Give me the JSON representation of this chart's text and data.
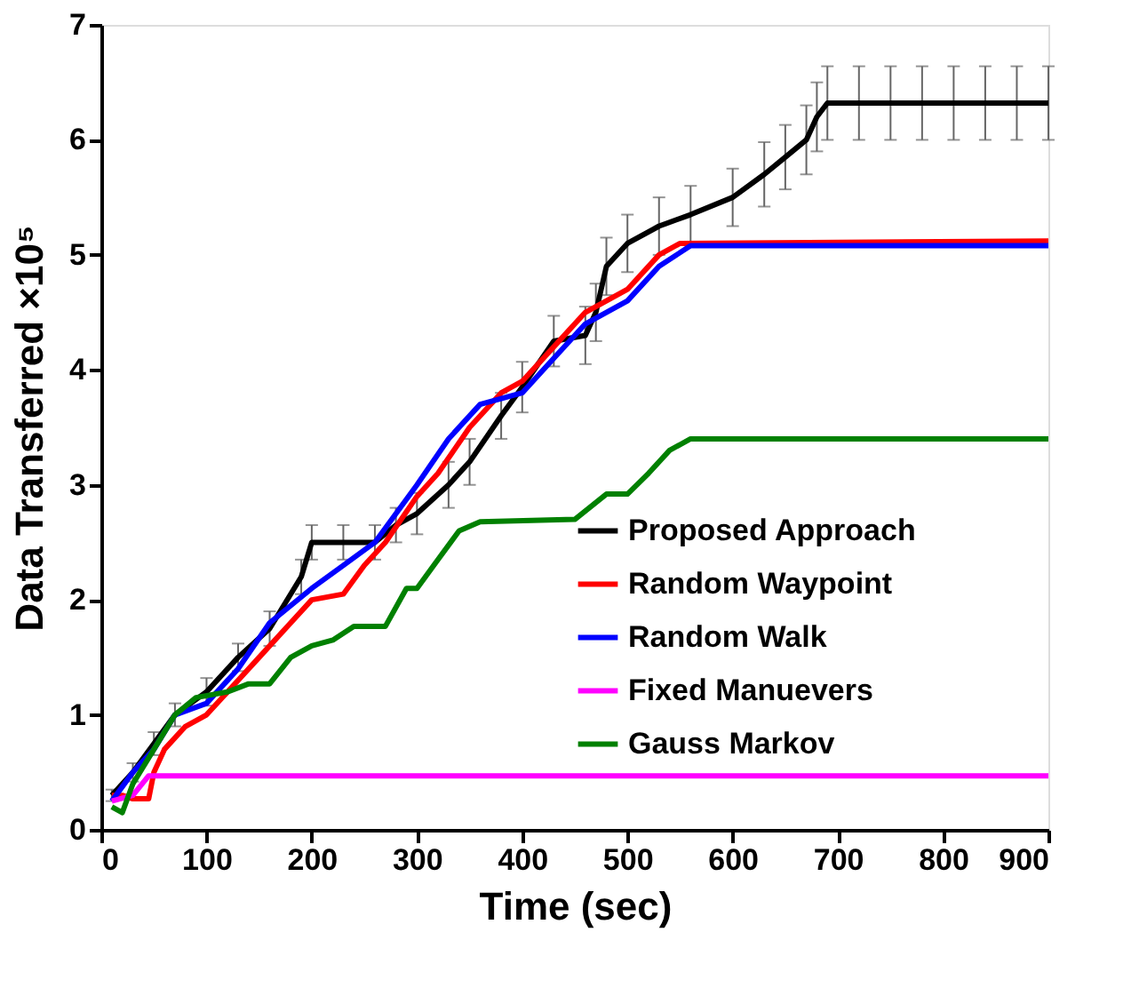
{
  "chart_data": {
    "type": "line",
    "xlabel": "Time (sec)",
    "ylabel": "Data Transferred ×10⁵",
    "xlim": [
      0,
      900
    ],
    "xticks": [
      0,
      100,
      200,
      300,
      400,
      500,
      600,
      700,
      800,
      900
    ],
    "ylim": [
      0,
      7
    ],
    "yticks": [
      0,
      1,
      2,
      3,
      4,
      5,
      6,
      7
    ],
    "grid": false,
    "legend": "bottom right",
    "marker": "none",
    "line_style": "solid",
    "series": [
      {
        "name": "Proposed Approach",
        "color": "#000000",
        "x": [
          10,
          30,
          50,
          70,
          100,
          130,
          160,
          190,
          200,
          230,
          260,
          280,
          300,
          330,
          350,
          380,
          400,
          430,
          460,
          470,
          480,
          500,
          530,
          560,
          600,
          630,
          650,
          670,
          680,
          690,
          720,
          750,
          780,
          810,
          840,
          870,
          900
        ],
        "values": [
          0.3,
          0.5,
          0.75,
          1.0,
          1.2,
          1.5,
          1.75,
          2.2,
          2.5,
          2.5,
          2.5,
          2.65,
          2.75,
          3.0,
          3.2,
          3.6,
          3.85,
          4.25,
          4.3,
          4.5,
          4.9,
          5.1,
          5.25,
          5.35,
          5.5,
          5.7,
          5.85,
          6.0,
          6.2,
          6.32,
          6.32,
          6.32,
          6.32,
          6.32,
          6.32,
          6.32,
          6.32
        ],
        "errors": [
          0.05,
          0.08,
          0.1,
          0.1,
          0.12,
          0.12,
          0.15,
          0.15,
          0.15,
          0.15,
          0.15,
          0.15,
          0.18,
          0.2,
          0.2,
          0.2,
          0.22,
          0.22,
          0.25,
          0.25,
          0.25,
          0.25,
          0.25,
          0.25,
          0.25,
          0.28,
          0.28,
          0.3,
          0.3,
          0.32,
          0.32,
          0.32,
          0.32,
          0.32,
          0.32,
          0.32,
          0.32
        ]
      },
      {
        "name": "Random Waypoint",
        "color": "#ff0000",
        "x": [
          10,
          20,
          30,
          45,
          50,
          60,
          80,
          100,
          120,
          150,
          180,
          200,
          230,
          250,
          270,
          300,
          320,
          350,
          380,
          400,
          430,
          460,
          500,
          530,
          550,
          900
        ],
        "values": [
          0.3,
          0.3,
          0.27,
          0.27,
          0.5,
          0.7,
          0.9,
          1.0,
          1.2,
          1.5,
          1.8,
          2.0,
          2.05,
          2.3,
          2.5,
          2.9,
          3.1,
          3.5,
          3.8,
          3.9,
          4.2,
          4.5,
          4.7,
          5.0,
          5.1,
          5.12
        ]
      },
      {
        "name": "Random Walk",
        "color": "#0000ff",
        "x": [
          10,
          30,
          50,
          70,
          100,
          130,
          160,
          200,
          230,
          260,
          300,
          330,
          360,
          400,
          430,
          460,
          500,
          530,
          560,
          900
        ],
        "values": [
          0.25,
          0.5,
          0.7,
          1.0,
          1.1,
          1.4,
          1.8,
          2.1,
          2.3,
          2.5,
          3.0,
          3.4,
          3.7,
          3.8,
          4.1,
          4.4,
          4.6,
          4.9,
          5.08,
          5.08
        ]
      },
      {
        "name": "Fixed Manuevers",
        "color": "#ff00ff",
        "x": [
          10,
          30,
          45,
          900
        ],
        "values": [
          0.25,
          0.3,
          0.47,
          0.47
        ]
      },
      {
        "name": "Gauss Markov",
        "color": "#008000",
        "x": [
          10,
          20,
          30,
          50,
          70,
          90,
          120,
          140,
          160,
          180,
          200,
          220,
          240,
          270,
          290,
          300,
          320,
          340,
          360,
          450,
          480,
          500,
          520,
          540,
          560,
          900
        ],
        "values": [
          0.2,
          0.15,
          0.4,
          0.7,
          1.0,
          1.15,
          1.2,
          1.27,
          1.27,
          1.5,
          1.6,
          1.65,
          1.77,
          1.77,
          2.1,
          2.1,
          2.35,
          2.6,
          2.68,
          2.7,
          2.92,
          2.92,
          3.1,
          3.3,
          3.4,
          3.4
        ]
      }
    ]
  }
}
